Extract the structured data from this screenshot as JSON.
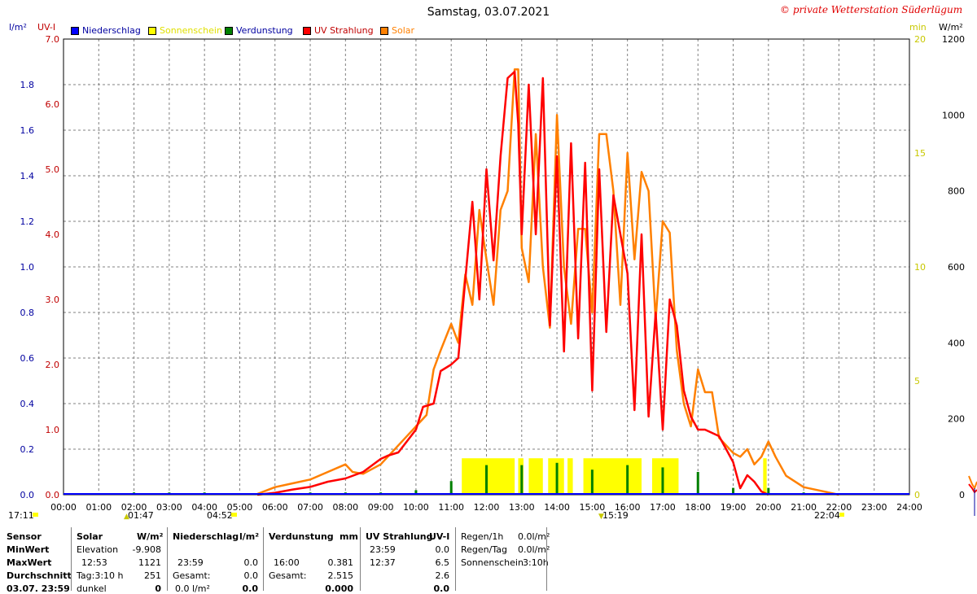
{
  "title": "Samstag, 03.07.2021",
  "copyright": "© private Wetterstation Süderlügum",
  "legend": [
    {
      "label": "Niederschlag",
      "color": "#0000ff"
    },
    {
      "label": "Sonnenschein",
      "color": "#ffff00"
    },
    {
      "label": "Verdunstung",
      "color": "#008000"
    },
    {
      "label": "UV Strahlung",
      "color": "#ff0000"
    },
    {
      "label": "Solar",
      "color": "#ff8000"
    }
  ],
  "axis_units": {
    "left1": "l/m²",
    "left2": "UV-I",
    "right1": "min",
    "right2": "W/m²"
  },
  "markers": {
    "sunrise_left": "17:11",
    "moon1": "01:47",
    "sunrise": "04:52",
    "noon": "15:19",
    "sunset": "22:04"
  },
  "chart_data": {
    "type": "line",
    "title": "Samstag, 03.07.2021",
    "x_ticks": [
      "00:00",
      "01:00",
      "02:00",
      "03:00",
      "04:00",
      "05:00",
      "06:00",
      "07:00",
      "08:00",
      "09:00",
      "10:00",
      "11:00",
      "12:00",
      "13:00",
      "14:00",
      "15:00",
      "16:00",
      "17:00",
      "18:00",
      "19:00",
      "20:00",
      "21:00",
      "22:00",
      "23:00",
      "24:00"
    ],
    "axes": {
      "precip_lm2": {
        "range": [
          0,
          2.0
        ],
        "ticks": [
          "0.0",
          "0.2",
          "0.4",
          "0.6",
          "0.8",
          "1.0",
          "1.2",
          "1.4",
          "1.6",
          "1.8"
        ],
        "color": "#0000a0"
      },
      "uv_index": {
        "range": [
          0,
          7.0
        ],
        "ticks": [
          "0.0",
          "1.0",
          "2.0",
          "3.0",
          "4.0",
          "5.0",
          "6.0",
          "7.0"
        ],
        "color": "#c00000"
      },
      "sunshine_min": {
        "range": [
          0,
          20
        ],
        "ticks": [
          "0",
          "5",
          "10",
          "15",
          "20"
        ],
        "color": "#c8c800"
      },
      "solar_wm2": {
        "range": [
          0,
          1200
        ],
        "ticks": [
          "0",
          "200",
          "400",
          "600",
          "800",
          "1000",
          "1200"
        ],
        "color": "#000000"
      }
    },
    "series": [
      {
        "name": "Solar",
        "unit": "W/m²",
        "color": "#ff8000",
        "x": [
          5.5,
          6,
          6.5,
          7,
          7.5,
          8,
          8.2,
          8.5,
          9,
          9.5,
          10,
          10.3,
          10.5,
          10.7,
          11,
          11.2,
          11.4,
          11.6,
          11.8,
          12,
          12.2,
          12.4,
          12.6,
          12.8,
          12.9,
          13,
          13.2,
          13.4,
          13.6,
          13.8,
          14,
          14.2,
          14.4,
          14.6,
          14.8,
          15,
          15.2,
          15.4,
          15.6,
          15.8,
          16,
          16.2,
          16.4,
          16.6,
          16.8,
          17,
          17.2,
          17.4,
          17.6,
          17.8,
          18,
          18.2,
          18.4,
          18.6,
          18.8,
          19,
          19.2,
          19.4,
          19.6,
          19.8,
          20,
          20.2,
          20.5,
          21,
          21.5,
          22
        ],
        "y": [
          2,
          20,
          30,
          40,
          60,
          80,
          60,
          55,
          80,
          130,
          180,
          210,
          330,
          380,
          450,
          400,
          580,
          500,
          750,
          620,
          500,
          750,
          800,
          1120,
          1120,
          650,
          560,
          950,
          600,
          440,
          1000,
          600,
          450,
          700,
          700,
          480,
          950,
          950,
          800,
          500,
          900,
          620,
          850,
          800,
          460,
          720,
          690,
          380,
          240,
          180,
          330,
          270,
          270,
          150,
          130,
          110,
          100,
          120,
          80,
          100,
          140,
          100,
          50,
          20,
          10,
          0
        ]
      },
      {
        "name": "UV Strahlung",
        "unit": "UV-I",
        "color": "#ff0000",
        "x": [
          5.5,
          6,
          6.5,
          7,
          7.5,
          8,
          8.5,
          9,
          9.2,
          9.5,
          10,
          10.2,
          10.5,
          10.7,
          11,
          11.2,
          11.4,
          11.6,
          11.8,
          12,
          12.2,
          12.4,
          12.6,
          12.8,
          12.9,
          13,
          13.2,
          13.4,
          13.6,
          13.8,
          14,
          14.2,
          14.4,
          14.6,
          14.8,
          15,
          15.2,
          15.4,
          15.6,
          15.8,
          16,
          16.2,
          16.4,
          16.6,
          16.8,
          17,
          17.2,
          17.4,
          17.6,
          17.8,
          18,
          18.2,
          18.4,
          18.6,
          18.8,
          19,
          19.2,
          19.4,
          19.6,
          19.8,
          20
        ],
        "y": [
          0,
          0.03,
          0.08,
          0.12,
          0.2,
          0.25,
          0.35,
          0.55,
          0.6,
          0.65,
          1.0,
          1.35,
          1.4,
          1.9,
          2.0,
          2.1,
          3.3,
          4.5,
          3.0,
          5.0,
          3.6,
          5.2,
          6.4,
          6.5,
          5.7,
          4.0,
          6.3,
          4.0,
          6.4,
          2.6,
          5.2,
          2.2,
          5.4,
          2.4,
          5.1,
          1.6,
          5.0,
          2.5,
          4.6,
          4.0,
          3.4,
          1.3,
          4.0,
          1.2,
          2.8,
          1.0,
          3.0,
          2.6,
          1.6,
          1.2,
          1.0,
          1.0,
          0.95,
          0.9,
          0.7,
          0.5,
          0.1,
          0.3,
          0.2,
          0.05,
          0
        ]
      },
      {
        "name": "Verdunstung",
        "unit": "mm",
        "color": "#008000",
        "x": [
          2,
          3,
          4,
          7,
          8,
          9,
          10,
          11,
          12,
          13,
          14,
          15,
          16,
          17,
          18,
          19,
          20,
          21
        ],
        "y": [
          0.01,
          0.01,
          0.01,
          0.01,
          0.01,
          0.01,
          0.02,
          0.06,
          0.13,
          0.13,
          0.14,
          0.11,
          0.13,
          0.12,
          0.1,
          0.03,
          0.03,
          0.01
        ]
      },
      {
        "name": "Sonnenschein",
        "unit": "min",
        "segments": [
          [
            11.3,
            12.8
          ],
          [
            12.9,
            13.05
          ],
          [
            13.2,
            13.6
          ],
          [
            13.75,
            14.2
          ],
          [
            14.3,
            14.45
          ],
          [
            14.75,
            16.4
          ],
          [
            16.7,
            17.45
          ],
          [
            19.85,
            19.95
          ]
        ],
        "color": "#ffff00"
      },
      {
        "name": "Niederschlag",
        "unit": "l/m²",
        "values": "0.0 all day",
        "color": "#0000ff"
      }
    ]
  },
  "footer": {
    "sensor_col": {
      "header": "Sensor",
      "rows": [
        "MinWert",
        "MaxWert",
        "Durchschnitt",
        "03.07. 23:59"
      ]
    },
    "solar_col": {
      "header": "Solar",
      "unit": "W/m²",
      "rows": [
        [
          "Elevation",
          "-9.908"
        ],
        [
          "12:53",
          "1121"
        ],
        [
          "Tag:3:10 h",
          "251"
        ],
        [
          "dunkel",
          "0"
        ]
      ]
    },
    "precip_col": {
      "header": "Niederschlag",
      "unit": "l/m²",
      "rows": [
        [
          "",
          ""
        ],
        [
          "23:59",
          "0.0"
        ],
        [
          "Gesamt:",
          "0.0"
        ],
        [
          "0.0 l/m²",
          "0.0"
        ]
      ]
    },
    "evap_col": {
      "header": "Verdunstung",
      "unit": "mm",
      "rows": [
        [
          "",
          ""
        ],
        [
          "16:00",
          "0.381"
        ],
        [
          "Gesamt:",
          "2.515"
        ],
        [
          "",
          "0.000"
        ]
      ]
    },
    "uv_col": {
      "header": "UV Strahlung",
      "unit": "UV-I",
      "rows": [
        [
          "23:59",
          "0.0"
        ],
        [
          "12:37",
          "6.5"
        ],
        [
          "",
          "2.6"
        ],
        [
          "",
          "0.0"
        ]
      ]
    },
    "rain_col": {
      "rows": [
        [
          "Regen/1h",
          "0.0l/m²"
        ],
        [
          "Regen/Tag",
          "0.0l/m²"
        ],
        [
          "Sonnenschein",
          "3:10h"
        ]
      ]
    }
  }
}
